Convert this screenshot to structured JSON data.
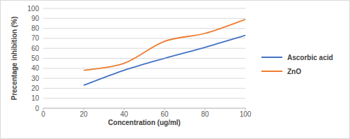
{
  "chart_data": {
    "type": "line",
    "x_label": "Concentration (ug/ml)",
    "y_label": "Precentage inhibition (%)",
    "x": [
      20,
      40,
      60,
      80,
      100
    ],
    "series": [
      {
        "name": "Ascorbic acid",
        "color": "#4472c4",
        "values": [
          23,
          38,
          50,
          61,
          73
        ]
      },
      {
        "name": "ZnO",
        "color": "#ed7d31",
        "values": [
          38,
          45,
          67,
          75,
          89
        ]
      }
    ],
    "xlim": [
      0,
      100
    ],
    "xticks": [
      0,
      20,
      40,
      60,
      80,
      100
    ],
    "ylim": [
      0,
      100
    ],
    "yticks": [
      0,
      10,
      20,
      30,
      40,
      50,
      60,
      70,
      80,
      90,
      100
    ],
    "grid": true,
    "legend": "right"
  }
}
